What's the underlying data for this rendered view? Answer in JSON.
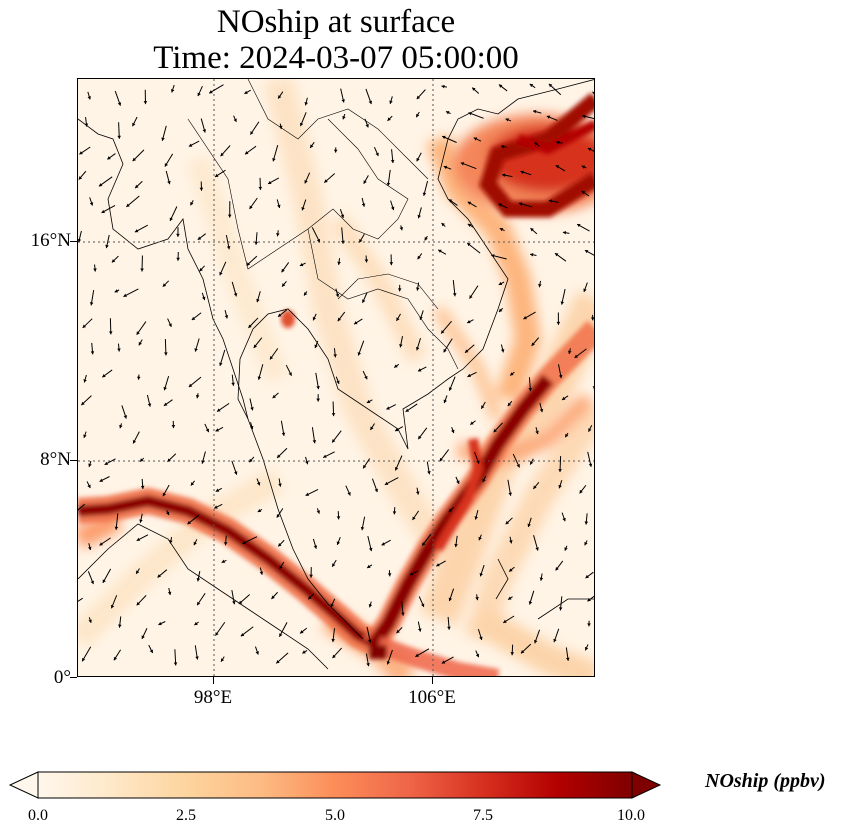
{
  "title": {
    "line1": "NOship at surface",
    "line2": "Time: 2024-03-07 05:00:00"
  },
  "map": {
    "variable": "NOship",
    "level": "surface",
    "colormap": [
      "#fff7ec",
      "#fee8c8",
      "#fdd49e",
      "#fdbb84",
      "#fc8d59",
      "#ef6548",
      "#d7301f",
      "#b30000",
      "#7f0000"
    ],
    "gridline_style": "dotted",
    "features": [
      "coastlines",
      "country-borders",
      "wind-vectors",
      "shipping-lane-plumes"
    ]
  },
  "axes": {
    "lat_ticks": [
      "16°N",
      "8°N",
      "0°"
    ],
    "lon_ticks": [
      "98°E",
      "106°E"
    ],
    "lat_range": [
      0,
      22
    ],
    "lon_range": [
      93,
      112
    ]
  },
  "colorbar": {
    "label": "NOship (ppbv)",
    "min": 0.0,
    "max": 10.0,
    "extend": "both",
    "ticks": [
      "0.0",
      "2.5",
      "5.0",
      "7.5",
      "10.0"
    ]
  }
}
